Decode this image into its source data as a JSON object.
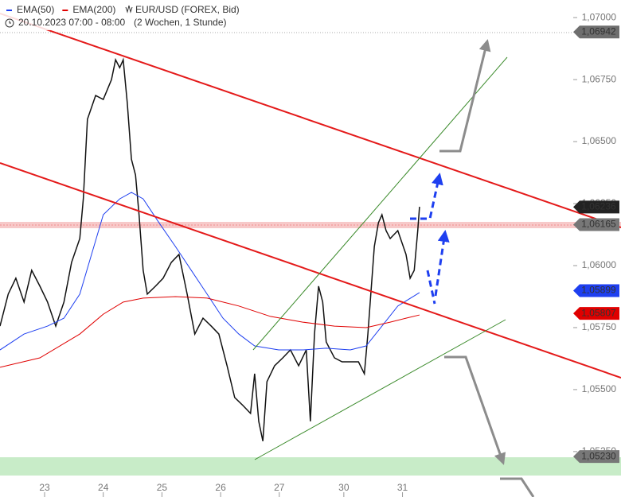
{
  "chart_data": {
    "type": "line",
    "title": "EUR/USD (FOREX, Bid)",
    "period": "20.10.2023 07:00 - 08:00",
    "range_note": "(2 Wochen, 1 Stunde)",
    "xlim": [
      -0.76,
      9.01
    ],
    "ylim": [
      1.05147,
      1.07071
    ],
    "xticks": [
      {
        "value": 0,
        "label": "23"
      },
      {
        "value": 1,
        "label": "24"
      },
      {
        "value": 2,
        "label": "25"
      },
      {
        "value": 3,
        "label": "26"
      },
      {
        "value": 4,
        "label": "27"
      },
      {
        "value": 5.1,
        "label": "30"
      },
      {
        "value": 6.1,
        "label": "31"
      }
    ],
    "yticks": [
      {
        "value": 1.07,
        "label": "1,07000"
      },
      {
        "value": 1.0675,
        "label": "1,06750"
      },
      {
        "value": 1.065,
        "label": "1,06500"
      },
      {
        "value": 1.0625,
        "label": "1,06250"
      },
      {
        "value": 1.06,
        "label": "1,06000"
      },
      {
        "value": 1.0575,
        "label": "1,05750"
      },
      {
        "value": 1.055,
        "label": "1,05500"
      },
      {
        "value": 1.0525,
        "label": "1,05250"
      }
    ],
    "series": [
      {
        "name": "EUR/USD (FOREX, Bid)",
        "color": "#111111",
        "legend": false,
        "x": [
          -0.76,
          -0.62,
          -0.49,
          -0.35,
          -0.22,
          -0.08,
          0.05,
          0.19,
          0.33,
          0.46,
          0.6,
          0.66,
          0.73,
          0.87,
          1.0,
          1.14,
          1.21,
          1.28,
          1.34,
          1.41,
          1.48,
          1.55,
          1.61,
          1.68,
          1.75,
          1.89,
          2.02,
          2.16,
          2.29,
          2.43,
          2.56,
          2.7,
          2.84,
          2.97,
          3.11,
          3.24,
          3.38,
          3.51,
          3.58,
          3.65,
          3.72,
          3.79,
          3.92,
          4.06,
          4.19,
          4.33,
          4.46,
          4.53,
          4.6,
          4.67,
          4.74,
          4.8,
          4.94,
          5.07,
          5.21,
          5.35,
          5.45,
          5.51,
          5.56,
          5.62,
          5.69,
          5.75,
          5.82,
          5.89,
          6.02,
          6.16,
          6.23,
          6.3,
          6.36,
          6.39
        ],
        "values": [
          1.05756,
          1.05885,
          1.05949,
          1.05853,
          1.05981,
          1.05917,
          1.05853,
          1.05756,
          1.05853,
          1.06013,
          1.06109,
          1.06269,
          1.0659,
          1.06686,
          1.0667,
          1.0675,
          1.0683,
          1.06798,
          1.0683,
          1.06654,
          1.06429,
          1.06365,
          1.06205,
          1.05981,
          1.05885,
          1.05917,
          1.05949,
          1.06013,
          1.06045,
          1.05885,
          1.05724,
          1.05788,
          1.05756,
          1.05724,
          1.05596,
          1.05468,
          1.05436,
          1.05404,
          1.05564,
          1.05372,
          1.05292,
          1.05532,
          1.05596,
          1.05628,
          1.0566,
          1.05596,
          1.0566,
          1.05372,
          1.05724,
          1.05917,
          1.05853,
          1.05692,
          1.05628,
          1.05612,
          1.05612,
          1.05612,
          1.05564,
          1.05724,
          1.05885,
          1.06077,
          1.06173,
          1.06205,
          1.06141,
          1.06109,
          1.06141,
          1.06045,
          1.05949,
          1.05981,
          1.06141,
          1.06237
        ]
      },
      {
        "name": "EMA(50)",
        "color": "#1e3ff0",
        "legend": true,
        "x": [
          -0.76,
          -0.35,
          0.05,
          0.33,
          0.6,
          0.8,
          1.0,
          1.28,
          1.48,
          1.68,
          1.95,
          2.23,
          2.5,
          2.77,
          3.04,
          3.31,
          3.58,
          3.99,
          4.4,
          4.8,
          5.21,
          5.48,
          5.75,
          6.02,
          6.3,
          6.39
        ],
        "values": [
          1.0566,
          1.05724,
          1.05756,
          1.05788,
          1.05885,
          1.06045,
          1.06205,
          1.06269,
          1.06295,
          1.06269,
          1.06173,
          1.06077,
          1.05981,
          1.05885,
          1.05788,
          1.05724,
          1.05676,
          1.0566,
          1.0566,
          1.05667,
          1.0566,
          1.05676,
          1.05756,
          1.05837,
          1.05878,
          1.05891
        ]
      },
      {
        "name": "EMA(200)",
        "color": "#e00000",
        "legend": true,
        "x": [
          -0.76,
          -0.08,
          0.6,
          1.0,
          1.34,
          1.68,
          2.23,
          2.77,
          3.31,
          3.85,
          4.4,
          4.94,
          5.48,
          5.89,
          6.16,
          6.39
        ],
        "values": [
          1.0559,
          1.05628,
          1.05724,
          1.05804,
          1.05853,
          1.05869,
          1.05875,
          1.05869,
          1.05837,
          1.05795,
          1.05772,
          1.05756,
          1.0575,
          1.05772,
          1.05788,
          1.05801
        ]
      }
    ],
    "price_labels": [
      {
        "value": 1.06942,
        "label": "1,06942",
        "color": "#6e6e6e"
      },
      {
        "value": 1.06236,
        "label": "1,06236",
        "color": "#222222"
      },
      {
        "value": 1.06165,
        "label": "1,06165",
        "color": "#777777"
      },
      {
        "value": 1.05899,
        "label": "1,05899",
        "color": "#1e3ff0"
      },
      {
        "value": 1.05807,
        "label": "1,05807",
        "color": "#e00000"
      },
      {
        "value": 1.0523,
        "label": "1,05230",
        "color": "#777777"
      }
    ]
  }
}
